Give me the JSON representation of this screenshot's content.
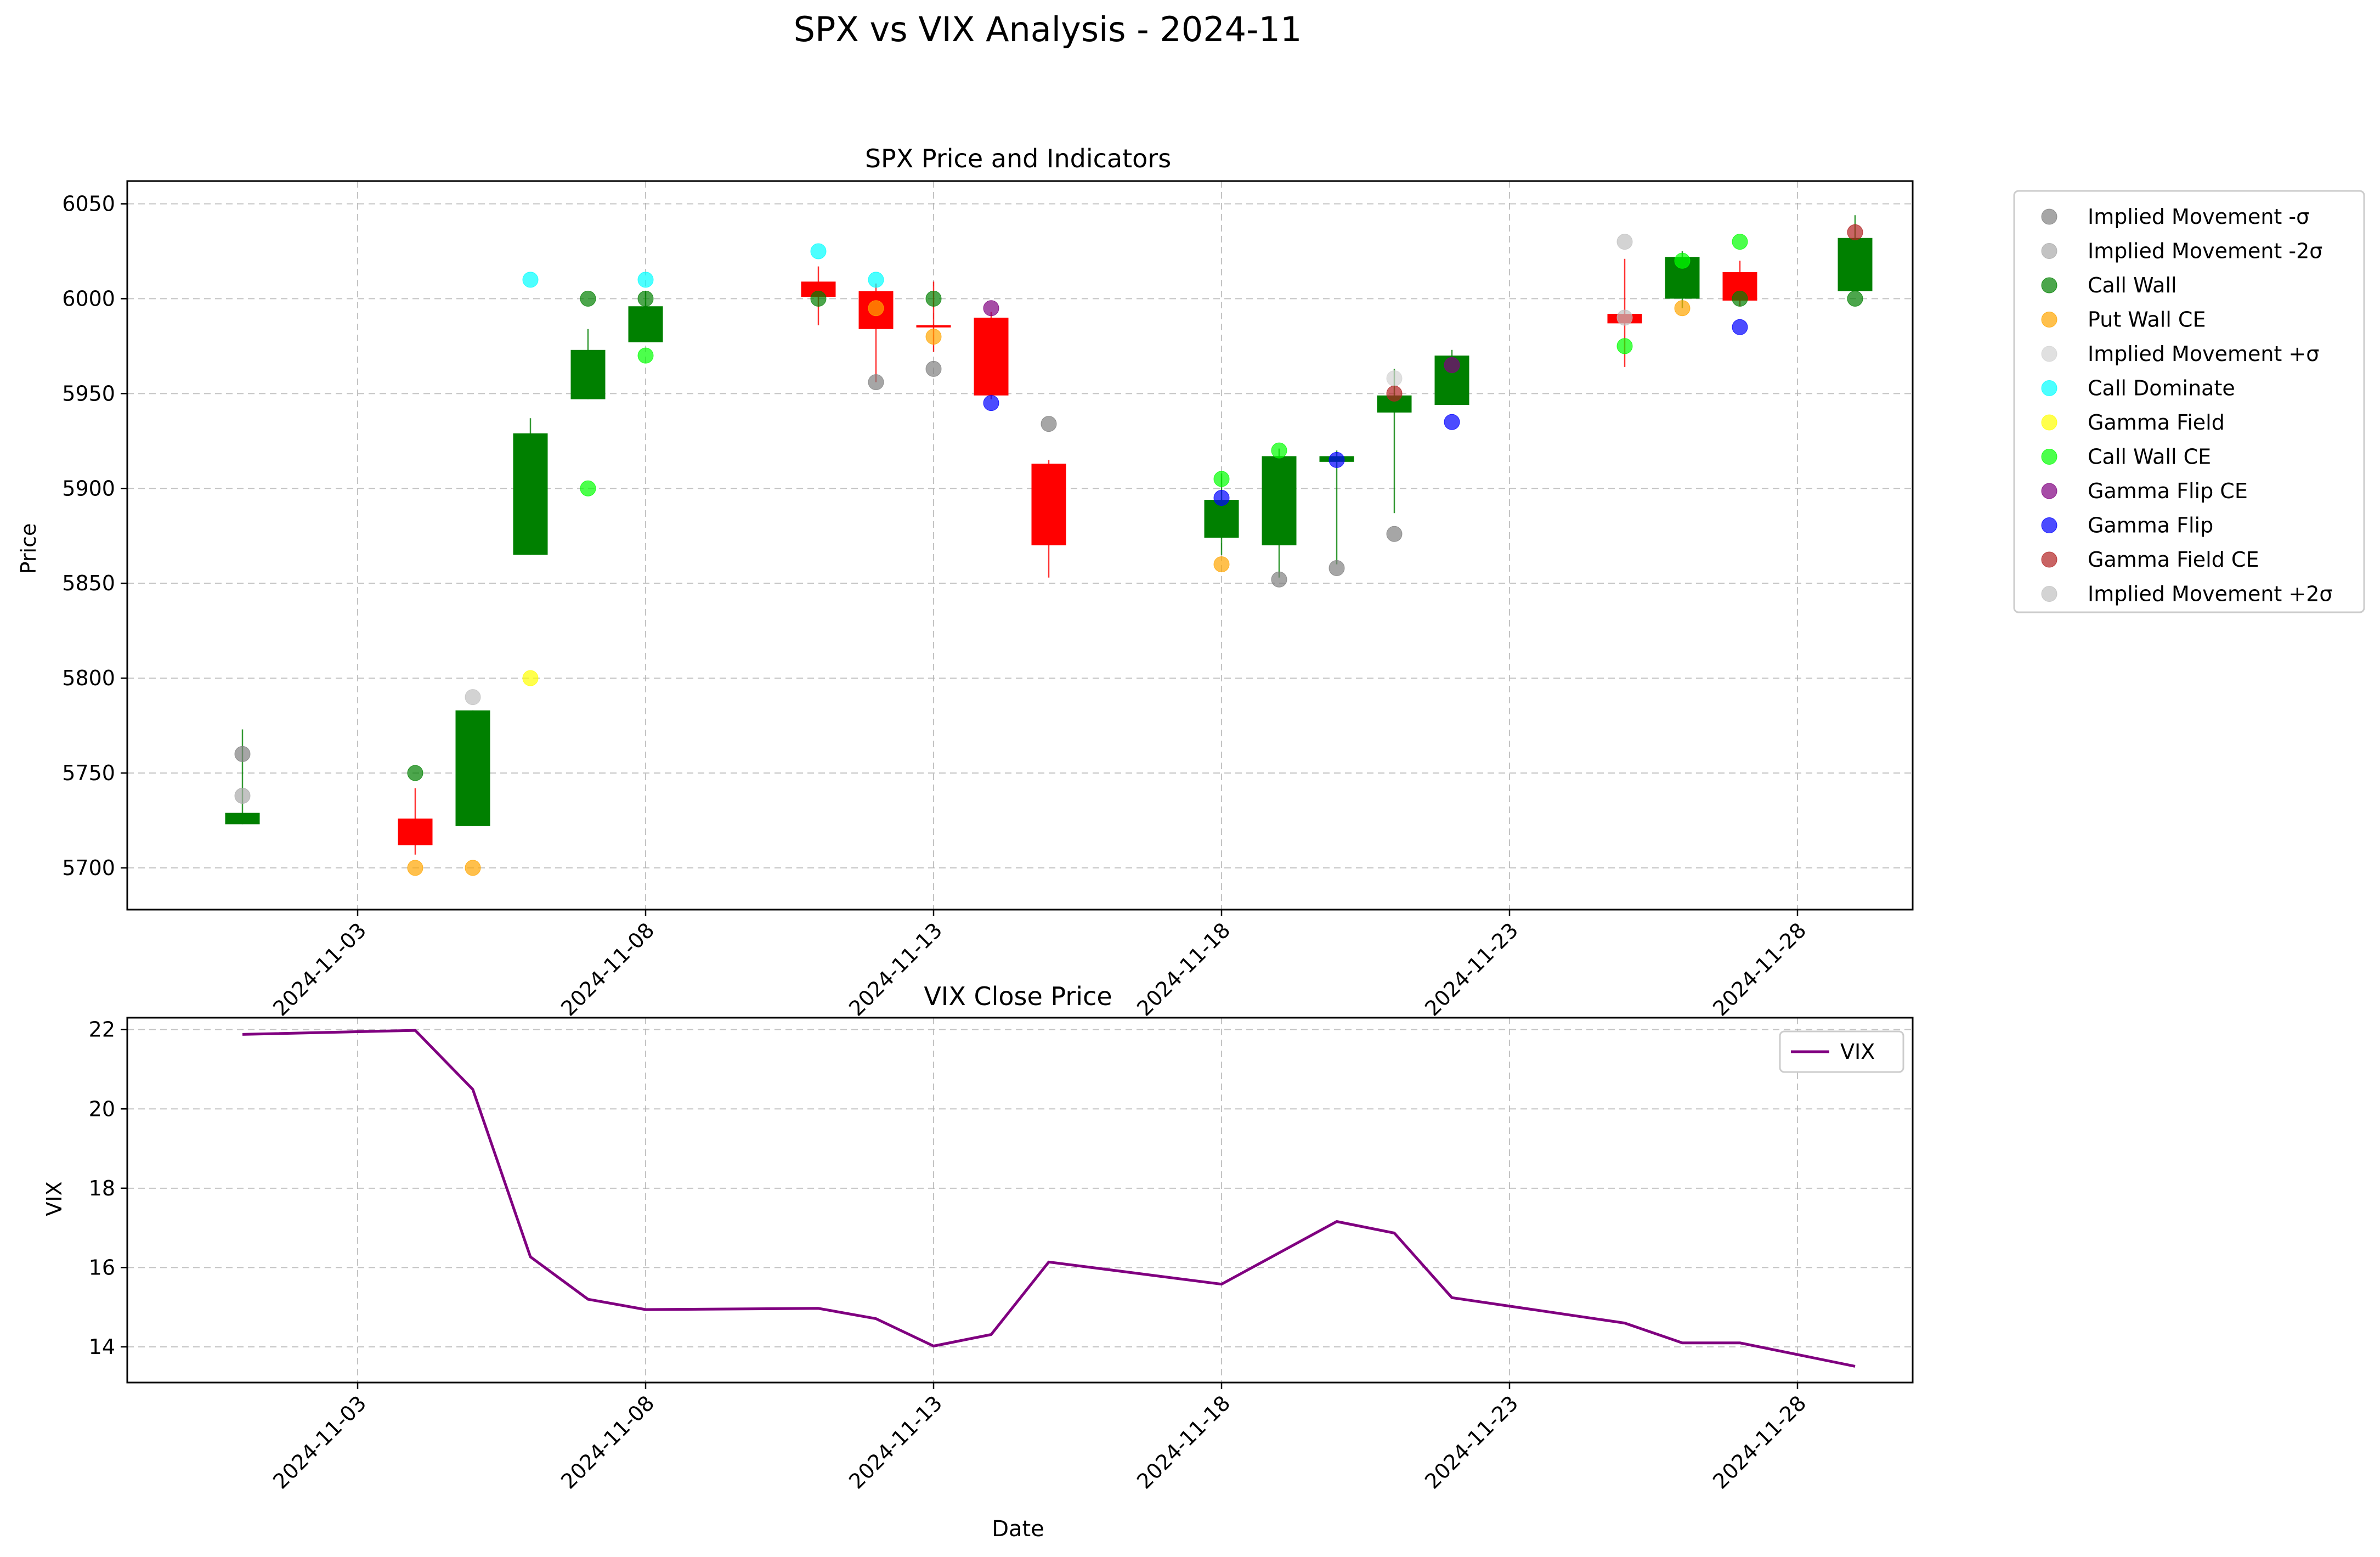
{
  "figure": {
    "title": "SPX vs VIX Analysis - 2024-11"
  },
  "chart_data": [
    {
      "type": "candlestick",
      "title": "SPX Price and Indicators",
      "xlabel": "",
      "ylabel": "Price",
      "ylim": [
        5678,
        6062
      ],
      "yticks": [
        5700,
        5750,
        5800,
        5850,
        5900,
        5950,
        6000,
        6050
      ],
      "xlim": [
        "2024-10-30",
        "2024-11-30"
      ],
      "xticks": [
        "2024-11-03",
        "2024-11-08",
        "2024-11-13",
        "2024-11-18",
        "2024-11-23",
        "2024-11-28"
      ],
      "grid": true,
      "legend_position": "outside-right",
      "candles": [
        {
          "date": "2024-11-01",
          "open": 5723,
          "close": 5729,
          "high": 5773,
          "low": 5723
        },
        {
          "date": "2024-11-04",
          "open": 5726,
          "close": 5712,
          "high": 5742,
          "low": 5707
        },
        {
          "date": "2024-11-05",
          "open": 5722,
          "close": 5783,
          "high": 5783,
          "low": 5722
        },
        {
          "date": "2024-11-06",
          "open": 5865,
          "close": 5929,
          "high": 5937,
          "low": 5865
        },
        {
          "date": "2024-11-07",
          "open": 5947,
          "close": 5973,
          "high": 5984,
          "low": 5947
        },
        {
          "date": "2024-11-08",
          "open": 5977,
          "close": 5996,
          "high": 6004,
          "low": 5977
        },
        {
          "date": "2024-11-11",
          "open": 6009,
          "close": 6001,
          "high": 6017,
          "low": 5986
        },
        {
          "date": "2024-11-12",
          "open": 6004,
          "close": 5984,
          "high": 6008,
          "low": 5956
        },
        {
          "date": "2024-11-13",
          "open": 5986,
          "close": 5985,
          "high": 6009,
          "low": 5972
        },
        {
          "date": "2024-11-14",
          "open": 5990,
          "close": 5949,
          "high": 5993,
          "low": 5947
        },
        {
          "date": "2024-11-15",
          "open": 5913,
          "close": 5870,
          "high": 5915,
          "low": 5853
        },
        {
          "date": "2024-11-18",
          "open": 5874,
          "close": 5894,
          "high": 5908,
          "low": 5865
        },
        {
          "date": "2024-11-19",
          "open": 5870,
          "close": 5917,
          "high": 5921,
          "low": 5853
        },
        {
          "date": "2024-11-20",
          "open": 5914,
          "close": 5917,
          "high": 5920,
          "low": 5860
        },
        {
          "date": "2024-11-21",
          "open": 5940,
          "close": 5949,
          "high": 5963,
          "low": 5887
        },
        {
          "date": "2024-11-22",
          "open": 5944,
          "close": 5970,
          "high": 5973,
          "low": 5944
        },
        {
          "date": "2024-11-25",
          "open": 5992,
          "close": 5987,
          "high": 6021,
          "low": 5964
        },
        {
          "date": "2024-11-26",
          "open": 6000,
          "close": 6022,
          "high": 6025,
          "low": 5995
        },
        {
          "date": "2024-11-27",
          "open": 6014,
          "close": 5999,
          "high": 6020,
          "low": 5996
        },
        {
          "date": "2024-11-29",
          "open": 6004,
          "close": 6032,
          "high": 6044,
          "low": 6004
        }
      ],
      "series": [
        {
          "name": "Implied Movement -σ",
          "color": "#808080",
          "points": [
            [
              "2024-11-01",
              5760
            ],
            [
              "2024-11-12",
              5956
            ],
            [
              "2024-11-13",
              5963
            ],
            [
              "2024-11-15",
              5934
            ],
            [
              "2024-11-19",
              5852
            ],
            [
              "2024-11-20",
              5858
            ],
            [
              "2024-11-21",
              5876
            ]
          ]
        },
        {
          "name": "Implied Movement -2σ",
          "color": "#a9a9a9",
          "points": [
            [
              "2024-11-01",
              5738
            ]
          ]
        },
        {
          "name": "Call Wall",
          "color": "#008000",
          "points": [
            [
              "2024-11-04",
              5750
            ],
            [
              "2024-11-07",
              6000
            ],
            [
              "2024-11-08",
              6000
            ],
            [
              "2024-11-11",
              6000
            ],
            [
              "2024-11-13",
              6000
            ],
            [
              "2024-11-27",
              6000
            ],
            [
              "2024-11-29",
              6000
            ]
          ]
        },
        {
          "name": "Put Wall CE",
          "color": "#ffa500",
          "points": [
            [
              "2024-11-04",
              5700
            ],
            [
              "2024-11-05",
              5700
            ],
            [
              "2024-11-12",
              5995
            ],
            [
              "2024-11-13",
              5980
            ],
            [
              "2024-11-18",
              5860
            ],
            [
              "2024-11-26",
              5995
            ]
          ]
        },
        {
          "name": "Implied Movement +σ",
          "color": "#d3d3d3",
          "points": [
            [
              "2024-11-21",
              5958
            ]
          ]
        },
        {
          "name": "Call Dominate",
          "color": "#00ffff",
          "points": [
            [
              "2024-11-06",
              6010
            ],
            [
              "2024-11-08",
              6010
            ],
            [
              "2024-11-11",
              6025
            ],
            [
              "2024-11-12",
              6010
            ]
          ]
        },
        {
          "name": "Gamma Field",
          "color": "#ffff00",
          "points": [
            [
              "2024-11-06",
              5800
            ]
          ]
        },
        {
          "name": "Call Wall CE",
          "color": "#00ff00",
          "points": [
            [
              "2024-11-07",
              5900
            ],
            [
              "2024-11-08",
              5970
            ],
            [
              "2024-11-18",
              5905
            ],
            [
              "2024-11-19",
              5920
            ],
            [
              "2024-11-25",
              5975
            ],
            [
              "2024-11-26",
              6020
            ],
            [
              "2024-11-27",
              6030
            ]
          ]
        },
        {
          "name": "Gamma Flip CE",
          "color": "#800080",
          "points": [
            [
              "2024-11-14",
              5995
            ],
            [
              "2024-11-22",
              5965
            ]
          ]
        },
        {
          "name": "Gamma Flip",
          "color": "#0000ff",
          "points": [
            [
              "2024-11-14",
              5945
            ],
            [
              "2024-11-18",
              5895
            ],
            [
              "2024-11-20",
              5915
            ],
            [
              "2024-11-22",
              5935
            ],
            [
              "2024-11-27",
              5985
            ]
          ]
        },
        {
          "name": "Gamma Field CE",
          "color": "#b22222",
          "points": [
            [
              "2024-11-21",
              5950
            ],
            [
              "2024-11-29",
              6035
            ]
          ]
        },
        {
          "name": "Implied Movement +2σ",
          "color": "#c0c0c0",
          "points": [
            [
              "2024-11-05",
              5790
            ],
            [
              "2024-11-25",
              6030
            ],
            [
              "2024-11-25",
              5990
            ]
          ]
        }
      ]
    },
    {
      "type": "line",
      "title": "VIX Close Price",
      "xlabel": "Date",
      "ylabel": "VIX",
      "ylim": [
        13.1,
        22.3
      ],
      "yticks": [
        14,
        16,
        18,
        20,
        22
      ],
      "xlim": [
        "2024-10-30",
        "2024-11-30"
      ],
      "xticks": [
        "2024-11-03",
        "2024-11-08",
        "2024-11-13",
        "2024-11-18",
        "2024-11-23",
        "2024-11-28"
      ],
      "grid": true,
      "legend_position": "top-right",
      "series": [
        {
          "name": "VIX",
          "color": "#800080",
          "points": [
            [
              "2024-11-01",
              21.88
            ],
            [
              "2024-11-04",
              21.98
            ],
            [
              "2024-11-05",
              20.49
            ],
            [
              "2024-11-06",
              16.27
            ],
            [
              "2024-11-07",
              15.2
            ],
            [
              "2024-11-08",
              14.94
            ],
            [
              "2024-11-11",
              14.97
            ],
            [
              "2024-11-12",
              14.71
            ],
            [
              "2024-11-13",
              14.02
            ],
            [
              "2024-11-14",
              14.31
            ],
            [
              "2024-11-15",
              16.14
            ],
            [
              "2024-11-18",
              15.58
            ],
            [
              "2024-11-20",
              17.16
            ],
            [
              "2024-11-21",
              16.87
            ],
            [
              "2024-11-22",
              15.24
            ],
            [
              "2024-11-25",
              14.6
            ],
            [
              "2024-11-26",
              14.1
            ],
            [
              "2024-11-27",
              14.1
            ],
            [
              "2024-11-29",
              13.51
            ]
          ]
        }
      ]
    }
  ]
}
